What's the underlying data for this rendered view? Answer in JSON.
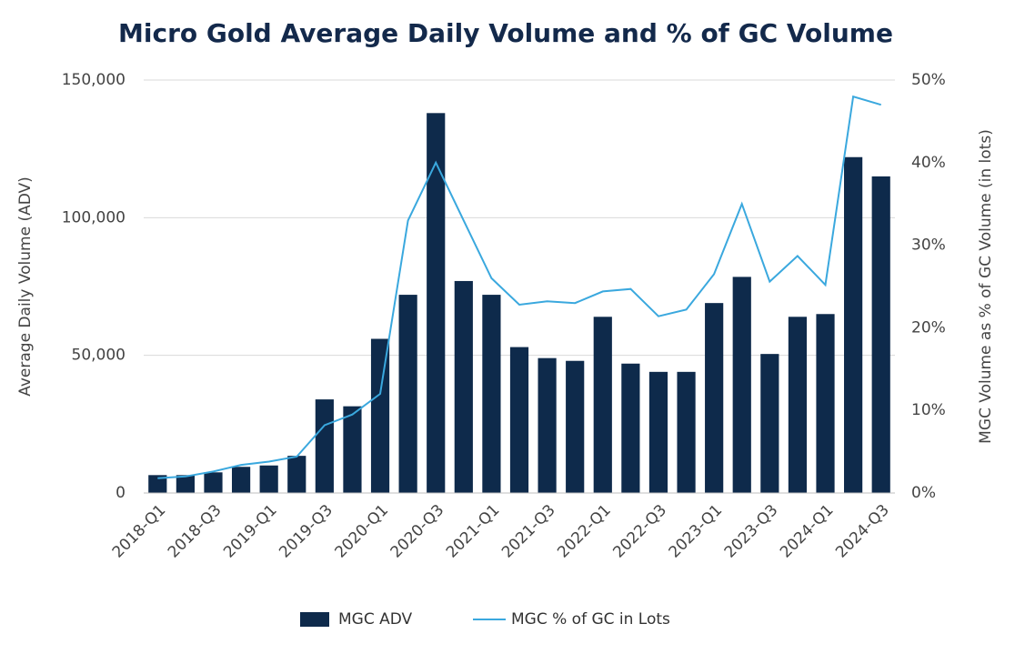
{
  "chart_data": {
    "type": "bar-line",
    "title": "Micro Gold Average Daily Volume and % of GC Volume",
    "y_label": "Average Daily Volume (ADV)",
    "y2_label": "MGC Volume as % of GC Volume (in lots)",
    "categories": [
      "2018-Q1",
      null,
      "2018-Q3",
      null,
      "2019-Q1",
      null,
      "2019-Q3",
      null,
      "2020-Q1",
      null,
      "2020-Q3",
      null,
      "2021-Q1",
      null,
      "2021-Q3",
      null,
      "2022-Q1",
      null,
      "2022-Q3",
      null,
      "2023-Q1",
      null,
      "2023-Q3",
      null,
      "2024-Q1",
      null,
      "2024-Q3"
    ],
    "series": [
      {
        "name": "MGC ADV",
        "type": "bar",
        "color": "#0e2a4b",
        "values": [
          6500,
          6500,
          7500,
          9500,
          10000,
          13500,
          34000,
          31500,
          56000,
          72000,
          138000,
          77000,
          72000,
          53000,
          49000,
          48000,
          64000,
          47000,
          44000,
          44000,
          69000,
          78500,
          50500,
          64000,
          65000,
          122000,
          115000
        ]
      },
      {
        "name": "MGC % of GC in Lots",
        "type": "line",
        "axis": "y2",
        "color": "#3aa8de",
        "values": [
          1.8,
          2.0,
          2.6,
          3.4,
          3.8,
          4.4,
          8.2,
          9.5,
          12,
          33,
          40,
          33,
          26,
          22.8,
          23.2,
          23,
          24.4,
          24.7,
          21.4,
          22.2,
          26.5,
          35,
          25.6,
          28.7,
          25.2,
          48,
          47
        ]
      }
    ],
    "ylim": [
      0,
      150000
    ],
    "yticks": [
      0,
      {
        "value": 50000,
        "label": "50,000"
      },
      {
        "value": 100000,
        "label": "100,000"
      },
      {
        "value": 150000,
        "label": "150,000"
      }
    ],
    "y2lim": [
      0,
      50
    ],
    "y2ticks": [
      {
        "value": 0,
        "label": "0%"
      },
      {
        "value": 10,
        "label": "10%"
      },
      {
        "value": 20,
        "label": "20%"
      },
      {
        "value": 30,
        "label": "30%"
      },
      {
        "value": 40,
        "label": "40%"
      },
      {
        "value": 50,
        "label": "50%"
      }
    ],
    "grid": true
  }
}
